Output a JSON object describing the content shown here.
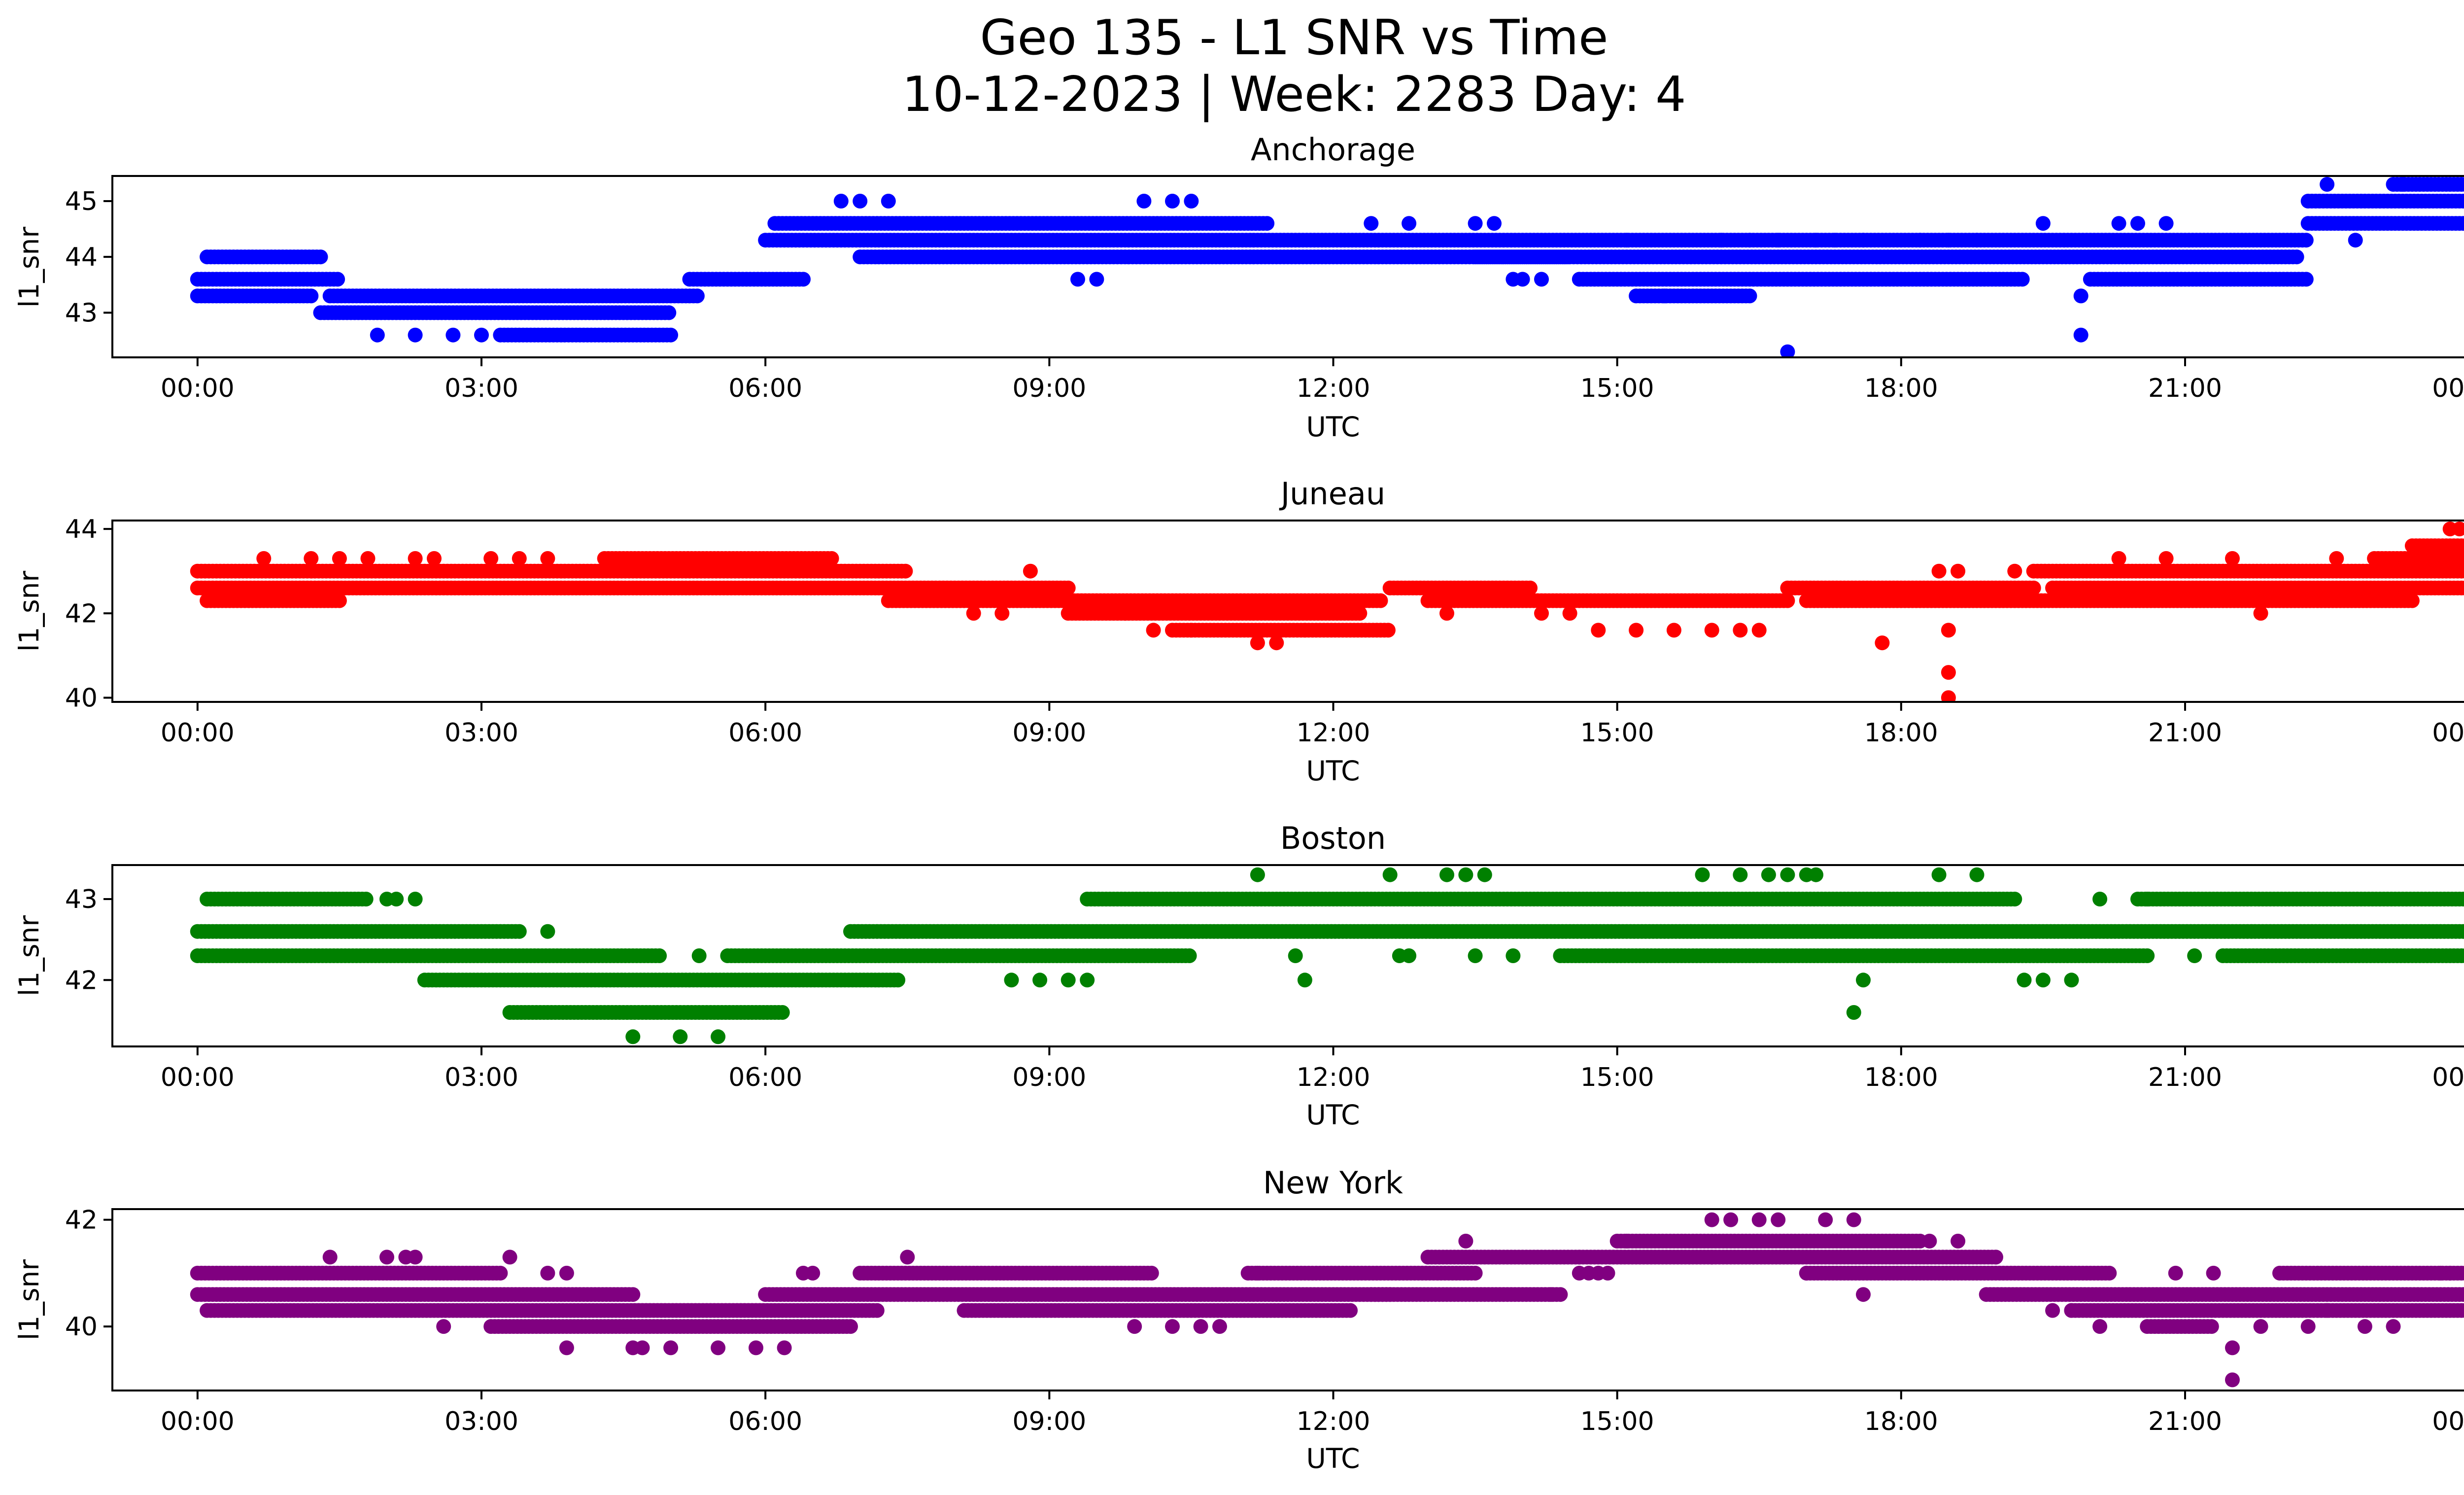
{
  "figure": {
    "title_line1": "Geo 135 - L1 SNR vs Time",
    "title_line2": "10-12-2023 | Week: 2283 Day: 4"
  },
  "chart_data": [
    {
      "type": "scatter",
      "title": "Anchorage",
      "xlabel": "UTC",
      "ylabel": "l1_snr",
      "color": "#0000ff",
      "xlim": [
        -0.9,
        24.9
      ],
      "ylim": [
        42.2,
        45.45
      ],
      "xticks": [
        "00:00",
        "03:00",
        "06:00",
        "09:00",
        "12:00",
        "15:00",
        "18:00",
        "21:00",
        "00:00"
      ],
      "yticks": [
        43,
        44,
        45
      ],
      "series": [
        {
          "x": [
            0.0,
            1.5
          ],
          "y": [
            43.6,
            43.6
          ]
        },
        {
          "x": [
            0.0,
            1.2
          ],
          "y": [
            43.3,
            43.3
          ]
        },
        {
          "x": [
            0.1,
            1.3
          ],
          "y": [
            44.0,
            44.0
          ]
        },
        {
          "x": [
            1.4,
            5.3
          ],
          "y": [
            43.3,
            43.3
          ]
        },
        {
          "x": [
            1.3,
            5.0
          ],
          "y": [
            43.0,
            43.0
          ]
        },
        {
          "x": [
            3.2,
            5.0
          ],
          "y": [
            42.6,
            42.6
          ]
        },
        {
          "x": [
            5.2,
            6.4
          ],
          "y": [
            43.6,
            43.6
          ]
        },
        {
          "x": [
            6.0,
            22.3
          ],
          "y": [
            44.3,
            44.3
          ]
        },
        {
          "x": [
            6.1,
            11.3
          ],
          "y": [
            44.6,
            44.6
          ]
        },
        {
          "x": [
            7.0,
            14.5
          ],
          "y": [
            44.0,
            44.0
          ]
        },
        {
          "x": [
            13.5,
            22.2
          ],
          "y": [
            44.0,
            44.0
          ]
        },
        {
          "x": [
            14.6,
            19.3
          ],
          "y": [
            43.6,
            43.6
          ]
        },
        {
          "x": [
            15.2,
            16.4
          ],
          "y": [
            43.3,
            43.3
          ]
        },
        {
          "x": [
            20.0,
            22.3
          ],
          "y": [
            43.6,
            43.6
          ]
        },
        {
          "x": [
            22.3,
            24.0
          ],
          "y": [
            44.6,
            44.6
          ]
        },
        {
          "x": [
            22.3,
            24.0
          ],
          "y": [
            45.0,
            45.0
          ]
        },
        {
          "x": [
            23.2,
            24.0
          ],
          "y": [
            45.3,
            45.3
          ]
        }
      ],
      "points": {
        "x": [
          1.9,
          2.3,
          2.7,
          3.0,
          6.8,
          7.0,
          7.3,
          10.0,
          10.3,
          10.5,
          9.3,
          9.5,
          12.4,
          12.8,
          13.5,
          13.7,
          13.9,
          14.0,
          14.2,
          15.1,
          15.5,
          16.1,
          16.4,
          16.7,
          16.8,
          17.1,
          17.3,
          17.6,
          18.2,
          18.5,
          18.8,
          19.5,
          19.9,
          20.3,
          20.5,
          20.8,
          19.9,
          22.5,
          22.8,
          23.3
        ],
        "y": [
          42.6,
          42.6,
          42.6,
          42.6,
          45.0,
          45.0,
          45.0,
          45.0,
          45.0,
          45.0,
          43.6,
          43.6,
          44.6,
          44.6,
          44.6,
          44.6,
          43.6,
          43.6,
          43.6,
          44.3,
          43.3,
          44.3,
          44.3,
          44.3,
          42.3,
          44.3,
          44.3,
          44.3,
          44.3,
          44.3,
          44.3,
          44.6,
          43.3,
          44.6,
          44.6,
          44.6,
          42.6,
          45.3,
          44.3,
          45.3
        ]
      }
    },
    {
      "type": "scatter",
      "title": "Juneau",
      "xlabel": "UTC",
      "ylabel": "l1_snr",
      "color": "#ff0000",
      "xlim": [
        -0.9,
        24.9
      ],
      "ylim": [
        39.9,
        44.2
      ],
      "xticks": [
        "00:00",
        "03:00",
        "06:00",
        "09:00",
        "12:00",
        "15:00",
        "18:00",
        "21:00",
        "00:00"
      ],
      "yticks": [
        40,
        42,
        44
      ],
      "series": [
        {
          "x": [
            0.0,
            7.5
          ],
          "y": [
            43.0,
            43.0
          ]
        },
        {
          "x": [
            0.0,
            9.2
          ],
          "y": [
            42.6,
            42.6
          ]
        },
        {
          "x": [
            0.1,
            1.5
          ],
          "y": [
            42.3,
            42.3
          ]
        },
        {
          "x": [
            4.3,
            6.7
          ],
          "y": [
            43.3,
            43.3
          ]
        },
        {
          "x": [
            7.3,
            12.5
          ],
          "y": [
            42.3,
            42.3
          ]
        },
        {
          "x": [
            9.2,
            12.3
          ],
          "y": [
            42.0,
            42.0
          ]
        },
        {
          "x": [
            10.3,
            12.6
          ],
          "y": [
            41.6,
            41.6
          ]
        },
        {
          "x": [
            12.6,
            14.1
          ],
          "y": [
            42.6,
            42.6
          ]
        },
        {
          "x": [
            13.0,
            16.8
          ],
          "y": [
            42.3,
            42.3
          ]
        },
        {
          "x": [
            16.8,
            19.4
          ],
          "y": [
            42.6,
            42.6
          ]
        },
        {
          "x": [
            19.4,
            24.0
          ],
          "y": [
            43.0,
            43.0
          ]
        },
        {
          "x": [
            17.0,
            23.4
          ],
          "y": [
            42.3,
            42.3
          ]
        },
        {
          "x": [
            19.6,
            24.0
          ],
          "y": [
            42.6,
            42.6
          ]
        },
        {
          "x": [
            23.0,
            24.0
          ],
          "y": [
            43.3,
            43.3
          ]
        },
        {
          "x": [
            23.4,
            24.0
          ],
          "y": [
            43.6,
            43.6
          ]
        }
      ],
      "points": {
        "x": [
          0.7,
          1.2,
          1.5,
          1.8,
          2.3,
          2.5,
          3.1,
          3.4,
          3.7,
          8.2,
          8.5,
          8.8,
          9.8,
          10.1,
          10.5,
          11.2,
          11.4,
          11.7,
          13.2,
          14.2,
          14.5,
          14.8,
          15.2,
          15.6,
          16.0,
          16.3,
          16.5,
          17.8,
          18.4,
          18.5,
          18.5,
          18.5,
          18.6,
          19.2,
          20.3,
          20.8,
          21.5,
          21.8,
          22.6,
          23.8,
          23.9
        ],
        "y": [
          43.3,
          43.3,
          43.3,
          43.3,
          43.3,
          43.3,
          43.3,
          43.3,
          43.3,
          42.0,
          42.0,
          43.0,
          42.0,
          41.6,
          41.6,
          41.3,
          41.3,
          41.6,
          42.0,
          42.0,
          42.0,
          41.6,
          41.6,
          41.6,
          41.6,
          41.6,
          41.6,
          41.3,
          43.0,
          41.6,
          40.6,
          40.0,
          43.0,
          43.0,
          43.3,
          43.3,
          43.3,
          42.0,
          43.3,
          44.0,
          44.0
        ]
      }
    },
    {
      "type": "scatter",
      "title": "Boston",
      "xlabel": "UTC",
      "ylabel": "l1_snr",
      "color": "#008000",
      "xlim": [
        -0.9,
        24.9
      ],
      "ylim": [
        41.18,
        43.42
      ],
      "xticks": [
        "00:00",
        "03:00",
        "06:00",
        "09:00",
        "12:00",
        "15:00",
        "18:00",
        "21:00",
        "00:00"
      ],
      "yticks": [
        42,
        43
      ],
      "series": [
        {
          "x": [
            0.0,
            3.4
          ],
          "y": [
            42.6,
            42.6
          ]
        },
        {
          "x": [
            0.0,
            4.9
          ],
          "y": [
            42.3,
            42.3
          ]
        },
        {
          "x": [
            0.1,
            1.8
          ],
          "y": [
            43.0,
            43.0
          ]
        },
        {
          "x": [
            2.4,
            7.4
          ],
          "y": [
            42.0,
            42.0
          ]
        },
        {
          "x": [
            3.3,
            6.2
          ],
          "y": [
            41.6,
            41.6
          ]
        },
        {
          "x": [
            5.6,
            10.5
          ],
          "y": [
            42.3,
            42.3
          ]
        },
        {
          "x": [
            6.9,
            24.0
          ],
          "y": [
            42.6,
            42.6
          ]
        },
        {
          "x": [
            9.4,
            19.2
          ],
          "y": [
            43.0,
            43.0
          ]
        },
        {
          "x": [
            14.4,
            20.6
          ],
          "y": [
            42.3,
            42.3
          ]
        },
        {
          "x": [
            20.5,
            24.0
          ],
          "y": [
            43.0,
            43.0
          ]
        },
        {
          "x": [
            21.4,
            24.0
          ],
          "y": [
            42.3,
            42.3
          ]
        }
      ],
      "points": {
        "x": [
          2.0,
          2.1,
          2.3,
          3.7,
          5.3,
          4.6,
          5.1,
          5.5,
          8.6,
          8.9,
          9.2,
          9.4,
          11.2,
          11.6,
          11.7,
          12.6,
          12.7,
          12.8,
          13.2,
          13.4,
          13.6,
          13.5,
          13.9,
          15.9,
          16.3,
          16.6,
          16.8,
          17.0,
          17.1,
          17.5,
          17.6,
          18.4,
          18.8,
          19.3,
          19.5,
          19.8,
          20.1,
          20.6,
          21.1
        ],
        "y": [
          43.0,
          43.0,
          43.0,
          42.6,
          42.3,
          41.3,
          41.3,
          41.3,
          42.0,
          42.0,
          42.0,
          42.0,
          43.3,
          42.3,
          42.0,
          43.3,
          42.3,
          42.3,
          43.3,
          43.3,
          43.3,
          42.3,
          42.3,
          43.3,
          43.3,
          43.3,
          43.3,
          43.3,
          43.3,
          41.6,
          42.0,
          43.3,
          43.3,
          42.0,
          42.0,
          42.0,
          43.0,
          43.0,
          42.3
        ]
      }
    },
    {
      "type": "scatter",
      "title": "New York",
      "xlabel": "UTC",
      "ylabel": "l1_snr",
      "color": "#800080",
      "xlim": [
        -0.9,
        24.9
      ],
      "ylim": [
        38.8,
        42.2
      ],
      "xticks": [
        "00:00",
        "03:00",
        "06:00",
        "09:00",
        "12:00",
        "15:00",
        "18:00",
        "21:00",
        "00:00"
      ],
      "yticks": [
        40,
        42
      ],
      "series": [
        {
          "x": [
            0.0,
            3.2
          ],
          "y": [
            41.0,
            41.0
          ]
        },
        {
          "x": [
            0.0,
            4.6
          ],
          "y": [
            40.6,
            40.6
          ]
        },
        {
          "x": [
            0.1,
            7.2
          ],
          "y": [
            40.3,
            40.3
          ]
        },
        {
          "x": [
            3.1,
            6.9
          ],
          "y": [
            40.0,
            40.0
          ]
        },
        {
          "x": [
            6.0,
            12.6
          ],
          "y": [
            40.6,
            40.6
          ]
        },
        {
          "x": [
            7.0,
            10.1
          ],
          "y": [
            41.0,
            41.0
          ]
        },
        {
          "x": [
            8.1,
            12.2
          ],
          "y": [
            40.3,
            40.3
          ]
        },
        {
          "x": [
            11.1,
            13.5
          ],
          "y": [
            41.0,
            41.0
          ]
        },
        {
          "x": [
            12.4,
            14.4
          ],
          "y": [
            40.6,
            40.6
          ]
        },
        {
          "x": [
            13.0,
            14.6
          ],
          "y": [
            41.3,
            41.3
          ]
        },
        {
          "x": [
            14.6,
            16.0
          ],
          "y": [
            41.3,
            41.3
          ]
        },
        {
          "x": [
            15.0,
            18.2
          ],
          "y": [
            41.6,
            41.6
          ]
        },
        {
          "x": [
            16.0,
            19.0
          ],
          "y": [
            41.3,
            41.3
          ]
        },
        {
          "x": [
            17.0,
            20.2
          ],
          "y": [
            41.0,
            41.0
          ]
        },
        {
          "x": [
            18.9,
            24.0
          ],
          "y": [
            40.6,
            40.6
          ]
        },
        {
          "x": [
            19.8,
            24.0
          ],
          "y": [
            40.3,
            40.3
          ]
        },
        {
          "x": [
            20.6,
            21.3
          ],
          "y": [
            40.0,
            40.0
          ]
        },
        {
          "x": [
            22.0,
            24.0
          ],
          "y": [
            41.0,
            41.0
          ]
        }
      ],
      "points": {
        "x": [
          1.4,
          2.0,
          2.2,
          2.3,
          2.6,
          3.3,
          3.7,
          3.9,
          3.9,
          4.6,
          4.7,
          5.0,
          5.5,
          5.9,
          6.2,
          6.4,
          6.5,
          7.5,
          9.9,
          10.3,
          10.6,
          10.8,
          11.2,
          13.4,
          14.3,
          14.6,
          14.7,
          14.8,
          14.9,
          15.1,
          16.0,
          16.2,
          16.5,
          16.7,
          17.0,
          17.2,
          17.5,
          17.6,
          18.3,
          18.6,
          19.0,
          19.6,
          19.8,
          20.1,
          20.9,
          21.3,
          21.5,
          21.5,
          21.8,
          22.3,
          22.5,
          22.9,
          23.2,
          23.7,
          23.8
        ],
        "y": [
          41.3,
          41.3,
          41.3,
          41.3,
          40.0,
          41.3,
          41.0,
          41.0,
          39.6,
          39.6,
          39.6,
          39.6,
          39.6,
          39.6,
          39.6,
          41.0,
          41.0,
          41.3,
          40.0,
          40.0,
          40.0,
          40.0,
          41.0,
          41.6,
          40.6,
          41.0,
          41.0,
          41.0,
          41.0,
          41.6,
          42.0,
          42.0,
          42.0,
          42.0,
          41.0,
          42.0,
          42.0,
          40.6,
          41.6,
          41.6,
          41.3,
          40.3,
          40.3,
          40.0,
          41.0,
          41.0,
          39.6,
          39.0,
          40.0,
          40.0,
          40.3,
          40.0,
          40.0,
          41.0,
          41.0
        ]
      }
    }
  ]
}
